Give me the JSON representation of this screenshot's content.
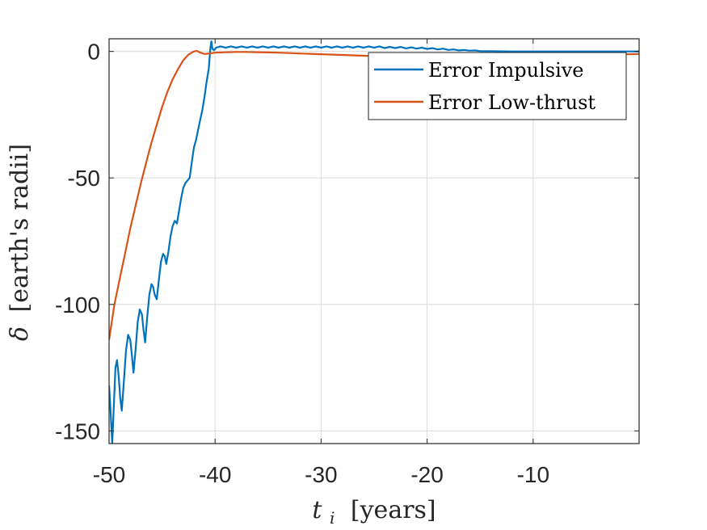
{
  "chart_data": {
    "type": "line",
    "title": "",
    "xlabel_var": "t",
    "xlabel_sub": "i",
    "xlabel_unit": "[years]",
    "ylabel_var": "δ",
    "ylabel_unit": "[earth's radii]",
    "xlim": [
      -50,
      0
    ],
    "ylim": [
      -155,
      5
    ],
    "xticks": [
      -50,
      -40,
      -30,
      -20,
      -10
    ],
    "yticks": [
      -150,
      -100,
      -50,
      0
    ],
    "xtick_labels": [
      "-50",
      "-40",
      "-30",
      "-20",
      "-10"
    ],
    "ytick_labels": [
      "-150",
      "-100",
      "-50",
      "0"
    ],
    "grid": true,
    "legend_position": "top-right",
    "series": [
      {
        "name": "Error Impulsive",
        "color": "#0072BD",
        "points": [
          [
            -50.0,
            -132
          ],
          [
            -49.85,
            -143
          ],
          [
            -49.7,
            -155
          ],
          [
            -49.55,
            -140
          ],
          [
            -49.4,
            -125
          ],
          [
            -49.25,
            -122
          ],
          [
            -49.1,
            -128
          ],
          [
            -48.95,
            -137
          ],
          [
            -48.8,
            -142
          ],
          [
            -48.6,
            -130
          ],
          [
            -48.4,
            -118
          ],
          [
            -48.2,
            -112
          ],
          [
            -48.0,
            -114
          ],
          [
            -47.85,
            -120
          ],
          [
            -47.7,
            -127
          ],
          [
            -47.5,
            -118
          ],
          [
            -47.3,
            -107
          ],
          [
            -47.1,
            -102
          ],
          [
            -46.9,
            -104
          ],
          [
            -46.75,
            -110
          ],
          [
            -46.6,
            -115
          ],
          [
            -46.4,
            -105
          ],
          [
            -46.2,
            -96
          ],
          [
            -46.0,
            -92
          ],
          [
            -45.85,
            -93
          ],
          [
            -45.7,
            -96
          ],
          [
            -45.5,
            -98
          ],
          [
            -45.3,
            -90
          ],
          [
            -45.1,
            -83
          ],
          [
            -44.9,
            -80
          ],
          [
            -44.75,
            -81
          ],
          [
            -44.6,
            -84
          ],
          [
            -44.4,
            -79
          ],
          [
            -44.2,
            -73
          ],
          [
            -44.0,
            -69
          ],
          [
            -43.8,
            -67
          ],
          [
            -43.6,
            -68
          ],
          [
            -43.4,
            -63
          ],
          [
            -43.2,
            -58
          ],
          [
            -43.0,
            -54
          ],
          [
            -42.8,
            -52
          ],
          [
            -42.6,
            -51
          ],
          [
            -42.4,
            -50
          ],
          [
            -42.2,
            -44
          ],
          [
            -42.0,
            -38
          ],
          [
            -41.8,
            -35
          ],
          [
            -41.6,
            -31
          ],
          [
            -41.4,
            -27
          ],
          [
            -41.2,
            -23
          ],
          [
            -41.0,
            -18
          ],
          [
            -40.8,
            -12
          ],
          [
            -40.6,
            -7
          ],
          [
            -40.45,
            1
          ],
          [
            -40.35,
            4
          ],
          [
            -40.25,
            1
          ],
          [
            -40.1,
            0.5
          ],
          [
            -39.9,
            1.5
          ],
          [
            -39.5,
            2
          ],
          [
            -39.0,
            1.5
          ],
          [
            -38.5,
            2
          ],
          [
            -38.0,
            1.5
          ],
          [
            -37.5,
            2
          ],
          [
            -37.0,
            1.5
          ],
          [
            -36.5,
            2
          ],
          [
            -36.0,
            1.5
          ],
          [
            -35.5,
            2
          ],
          [
            -35.0,
            1.5
          ],
          [
            -34.5,
            2
          ],
          [
            -34.0,
            1.5
          ],
          [
            -33.5,
            2
          ],
          [
            -33.0,
            1.5
          ],
          [
            -32.5,
            2
          ],
          [
            -32.0,
            1.5
          ],
          [
            -31.5,
            2
          ],
          [
            -31.0,
            1.5
          ],
          [
            -30.5,
            2
          ],
          [
            -30.0,
            1.5
          ],
          [
            -29.5,
            2
          ],
          [
            -29.0,
            1.5
          ],
          [
            -28.5,
            2
          ],
          [
            -28.0,
            1.5
          ],
          [
            -27.5,
            2
          ],
          [
            -27.0,
            1.5
          ],
          [
            -26.5,
            2
          ],
          [
            -26.0,
            1.5
          ],
          [
            -25.5,
            2
          ],
          [
            -25.0,
            1.5
          ],
          [
            -24.5,
            2
          ],
          [
            -24.0,
            1.3
          ],
          [
            -23.5,
            1.8
          ],
          [
            -23.0,
            1.3
          ],
          [
            -22.5,
            1.8
          ],
          [
            -22.0,
            1.2
          ],
          [
            -21.5,
            1.6
          ],
          [
            -21.0,
            1.1
          ],
          [
            -20.5,
            1.5
          ],
          [
            -20.0,
            1.0
          ],
          [
            -19.5,
            1.3
          ],
          [
            -19.0,
            0.8
          ],
          [
            -18.5,
            1.1
          ],
          [
            -18.0,
            0.6
          ],
          [
            -17.5,
            0.8
          ],
          [
            -17.0,
            0.4
          ],
          [
            -16.5,
            0.6
          ],
          [
            -16.0,
            0.3
          ],
          [
            -15.5,
            0.4
          ],
          [
            -15.0,
            0.1
          ],
          [
            -14.0,
            0.1
          ],
          [
            -12.0,
            0.0
          ],
          [
            -10.0,
            0.0
          ],
          [
            -8.0,
            0.0
          ],
          [
            -5.0,
            0.0
          ],
          [
            -2.0,
            0.0
          ],
          [
            0.0,
            0.0
          ]
        ]
      },
      {
        "name": "Error Low-thrust",
        "color": "#D95319",
        "points": [
          [
            -50.0,
            -114
          ],
          [
            -49.5,
            -100
          ],
          [
            -49.0,
            -90
          ],
          [
            -48.5,
            -80
          ],
          [
            -48.0,
            -70
          ],
          [
            -47.5,
            -61
          ],
          [
            -47.0,
            -52
          ],
          [
            -46.5,
            -44
          ],
          [
            -46.0,
            -36
          ],
          [
            -45.5,
            -29
          ],
          [
            -45.0,
            -22
          ],
          [
            -44.5,
            -16
          ],
          [
            -44.0,
            -11
          ],
          [
            -43.5,
            -7
          ],
          [
            -43.0,
            -3.5
          ],
          [
            -42.5,
            -1.2
          ],
          [
            -42.0,
            0
          ],
          [
            -41.7,
            0.2
          ],
          [
            -41.5,
            -0.3
          ],
          [
            -41.0,
            -1.0
          ],
          [
            -40.5,
            -0.8
          ],
          [
            -40.0,
            -0.5
          ],
          [
            -39.0,
            -0.3
          ],
          [
            -38.0,
            -0.2
          ],
          [
            -37.0,
            -0.2
          ],
          [
            -36.0,
            -0.3
          ],
          [
            -35.0,
            -0.4
          ],
          [
            -34.0,
            -0.5
          ],
          [
            -32.0,
            -0.8
          ],
          [
            -30.0,
            -1.1
          ],
          [
            -28.0,
            -1.4
          ],
          [
            -26.0,
            -1.7
          ],
          [
            -24.0,
            -2.0
          ],
          [
            -22.0,
            -2.2
          ],
          [
            -20.0,
            -2.3
          ],
          [
            -17.0,
            -2.3
          ],
          [
            -14.0,
            -2.2
          ],
          [
            -11.0,
            -2.0
          ],
          [
            -8.0,
            -1.8
          ],
          [
            -5.0,
            -1.5
          ],
          [
            -2.0,
            -1.2
          ],
          [
            0.0,
            -1.0
          ]
        ]
      }
    ]
  }
}
